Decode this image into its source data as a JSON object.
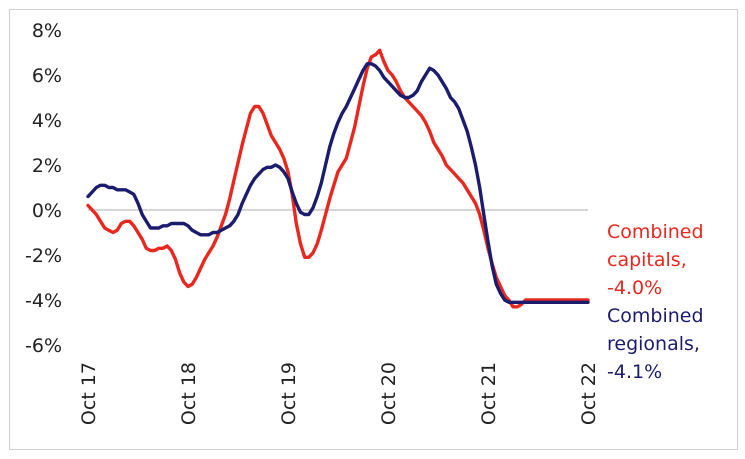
{
  "chart_data": {
    "type": "line",
    "x_ticks": [
      "Oct 17",
      "Oct 18",
      "Oct 19",
      "Oct 20",
      "Oct 21",
      "Oct 22"
    ],
    "y_ticks": [
      "8%",
      "6%",
      "4%",
      "2%",
      "0%",
      "-2%",
      "-4%",
      "-6%"
    ],
    "ylim": [
      -6,
      8
    ],
    "grid": false,
    "colors": {
      "capitals": "#e8281e",
      "regionals": "#1c1c6e",
      "zero_line": "#bdbdbd",
      "tick_text": "#222222"
    },
    "series": [
      {
        "name": "Combined capitals",
        "key": "capitals",
        "legend_lines": [
          "Combined",
          "capitals,",
          "-4.0%"
        ],
        "x": [
          0,
          0.5,
          1,
          1.5,
          2,
          2.5,
          3,
          3.5,
          4,
          4.5,
          5,
          5.5,
          6,
          6.5,
          7,
          7.5,
          8,
          8.5,
          9,
          9.5,
          10,
          10.5,
          11,
          11.5,
          12,
          12.5,
          13,
          13.5,
          14,
          14.5,
          15,
          15.5,
          16,
          16.5,
          17,
          17.5,
          18,
          18.5,
          19,
          19.5,
          20,
          20.5,
          21,
          21.5,
          22,
          22.5,
          23,
          23.5,
          24,
          24.5,
          25,
          25.5,
          26,
          26.5,
          27,
          27.5,
          28,
          28.5,
          29,
          29.5,
          30,
          30.5,
          31,
          31.5,
          32,
          32.5,
          33,
          33.5,
          34,
          34.5,
          35,
          35.5,
          36,
          36.5,
          37,
          37.5,
          38,
          38.5,
          39,
          39.5,
          40,
          40.5,
          41,
          41.5,
          42,
          42.5,
          43,
          43.5,
          44,
          44.5,
          45,
          45.5,
          46,
          46.5,
          47,
          47.5,
          48,
          48.5,
          49,
          49.5,
          50,
          50.5,
          51,
          51.5,
          52,
          52.5,
          53,
          53.5,
          54,
          54.5,
          55,
          55.5,
          56,
          56.5,
          57,
          57.5,
          58,
          58.5,
          59,
          59.5,
          60
        ],
        "values": [
          0.2,
          0.0,
          -0.2,
          -0.5,
          -0.8,
          -0.9,
          -1.0,
          -0.9,
          -0.6,
          -0.5,
          -0.5,
          -0.7,
          -1.0,
          -1.3,
          -1.7,
          -1.8,
          -1.8,
          -1.7,
          -1.7,
          -1.6,
          -1.8,
          -2.2,
          -2.8,
          -3.2,
          -3.4,
          -3.3,
          -3.0,
          -2.6,
          -2.2,
          -1.9,
          -1.6,
          -1.2,
          -0.7,
          -0.2,
          0.5,
          1.3,
          2.1,
          2.9,
          3.6,
          4.3,
          4.6,
          4.6,
          4.3,
          3.8,
          3.3,
          3.0,
          2.7,
          2.3,
          1.7,
          0.7,
          -0.6,
          -1.5,
          -2.1,
          -2.1,
          -1.9,
          -1.5,
          -0.9,
          -0.2,
          0.5,
          1.1,
          1.7,
          2.0,
          2.3,
          3.0,
          3.7,
          4.6,
          5.5,
          6.3,
          6.8,
          6.9,
          7.1,
          6.6,
          6.2,
          6.0,
          5.7,
          5.3,
          5.0,
          4.8,
          4.6,
          4.4,
          4.2,
          3.9,
          3.5,
          3.0,
          2.7,
          2.4,
          2.0,
          1.8,
          1.6,
          1.4,
          1.2,
          0.9,
          0.6,
          0.3,
          -0.2,
          -0.9,
          -1.7,
          -2.4,
          -3.0,
          -3.4,
          -3.8,
          -4.0,
          -4.3,
          -4.3,
          -4.2,
          -4.0,
          -4.0,
          -4.0,
          -4.0,
          -4.0,
          -4.0,
          -4.0,
          -4.0,
          -4.0,
          -4.0,
          -4.0,
          -4.0,
          -4.0,
          -4.0,
          -4.0,
          -4.0
        ]
      },
      {
        "name": "Combined regionals",
        "key": "regionals",
        "legend_lines": [
          "Combined",
          "regionals,",
          "-4.1%"
        ],
        "x": [
          0,
          0.5,
          1,
          1.5,
          2,
          2.5,
          3,
          3.5,
          4,
          4.5,
          5,
          5.5,
          6,
          6.5,
          7,
          7.5,
          8,
          8.5,
          9,
          9.5,
          10,
          10.5,
          11,
          11.5,
          12,
          12.5,
          13,
          13.5,
          14,
          14.5,
          15,
          15.5,
          16,
          16.5,
          17,
          17.5,
          18,
          18.5,
          19,
          19.5,
          20,
          20.5,
          21,
          21.5,
          22,
          22.5,
          23,
          23.5,
          24,
          24.5,
          25,
          25.5,
          26,
          26.5,
          27,
          27.5,
          28,
          28.5,
          29,
          29.5,
          30,
          30.5,
          31,
          31.5,
          32,
          32.5,
          33,
          33.5,
          34,
          34.5,
          35,
          35.5,
          36,
          36.5,
          37,
          37.5,
          38,
          38.5,
          39,
          39.5,
          40,
          40.5,
          41,
          41.5,
          42,
          42.5,
          43,
          43.5,
          44,
          44.5,
          45,
          45.5,
          46,
          46.5,
          47,
          47.5,
          48,
          48.5,
          49,
          49.5,
          50,
          50.5,
          51,
          51.5,
          52,
          52.5,
          53,
          53.5,
          54,
          54.5,
          55,
          55.5,
          56,
          56.5,
          57,
          57.5,
          58,
          58.5,
          59,
          59.5,
          60
        ],
        "values": [
          0.6,
          0.8,
          1.0,
          1.1,
          1.1,
          1.0,
          1.0,
          0.9,
          0.9,
          0.9,
          0.8,
          0.7,
          0.3,
          -0.2,
          -0.5,
          -0.8,
          -0.8,
          -0.8,
          -0.7,
          -0.7,
          -0.6,
          -0.6,
          -0.6,
          -0.6,
          -0.7,
          -0.9,
          -1.0,
          -1.1,
          -1.1,
          -1.1,
          -1.0,
          -1.0,
          -0.9,
          -0.8,
          -0.7,
          -0.5,
          -0.2,
          0.3,
          0.7,
          1.1,
          1.4,
          1.6,
          1.8,
          1.9,
          1.9,
          2.0,
          1.9,
          1.7,
          1.4,
          0.8,
          0.3,
          -0.1,
          -0.2,
          -0.2,
          0.1,
          0.6,
          1.2,
          2.0,
          2.8,
          3.4,
          3.9,
          4.3,
          4.6,
          5.0,
          5.4,
          5.8,
          6.2,
          6.5,
          6.5,
          6.4,
          6.2,
          5.9,
          5.7,
          5.5,
          5.3,
          5.1,
          5.0,
          5.0,
          5.1,
          5.3,
          5.7,
          6.0,
          6.3,
          6.2,
          6.0,
          5.7,
          5.4,
          5.0,
          4.8,
          4.5,
          4.0,
          3.5,
          2.8,
          2.0,
          1.0,
          -0.2,
          -1.4,
          -2.5,
          -3.3,
          -3.7,
          -4.0,
          -4.1,
          -4.1,
          -4.1,
          -4.1,
          -4.1,
          -4.1,
          -4.1,
          -4.1,
          -4.1,
          -4.1,
          -4.1,
          -4.1,
          -4.1,
          -4.1,
          -4.1,
          -4.1,
          -4.1,
          -4.1,
          -4.1,
          -4.1
        ]
      }
    ]
  }
}
